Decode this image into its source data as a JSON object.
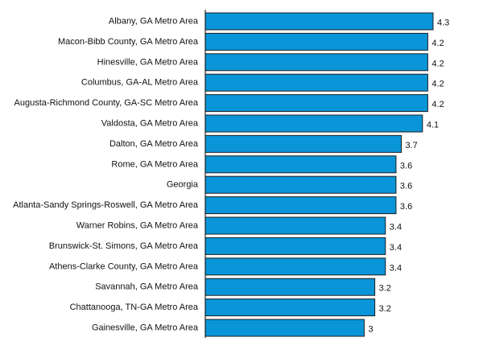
{
  "chart_data": {
    "type": "bar",
    "orientation": "horizontal",
    "categories": [
      "Albany, GA Metro Area",
      "Macon-Bibb County, GA Metro Area",
      "Hinesville, GA Metro Area",
      "Columbus, GA-AL Metro Area",
      "Augusta-Richmond County, GA-SC Metro Area",
      "Valdosta, GA Metro Area",
      "Dalton, GA Metro Area",
      "Rome, GA Metro Area",
      "Georgia",
      "Atlanta-Sandy Springs-Roswell, GA Metro Area",
      "Warner Robins, GA Metro Area",
      "Brunswick-St. Simons, GA Metro Area",
      "Athens-Clarke County, GA Metro Area",
      "Savannah, GA Metro Area",
      "Chattanooga, TN-GA Metro Area",
      "Gainesville, GA Metro Area"
    ],
    "values": [
      4.3,
      4.2,
      4.2,
      4.2,
      4.2,
      4.1,
      3.7,
      3.6,
      3.6,
      3.6,
      3.4,
      3.4,
      3.4,
      3.2,
      3.2,
      3
    ],
    "value_labels": [
      "4.3",
      "4.2",
      "4.2",
      "4.2",
      "4.2",
      "4.1",
      "3.7",
      "3.6",
      "3.6",
      "3.6",
      "3.4",
      "3.4",
      "3.4",
      "3.2",
      "3.2",
      "3"
    ],
    "xlim": [
      0,
      4.3
    ],
    "grid": false,
    "legend": "none",
    "colors": {
      "bar_fill": "#0a95d8",
      "bar_stroke": "#1f1f1f",
      "axis": "#000000",
      "text": "#111111"
    }
  }
}
